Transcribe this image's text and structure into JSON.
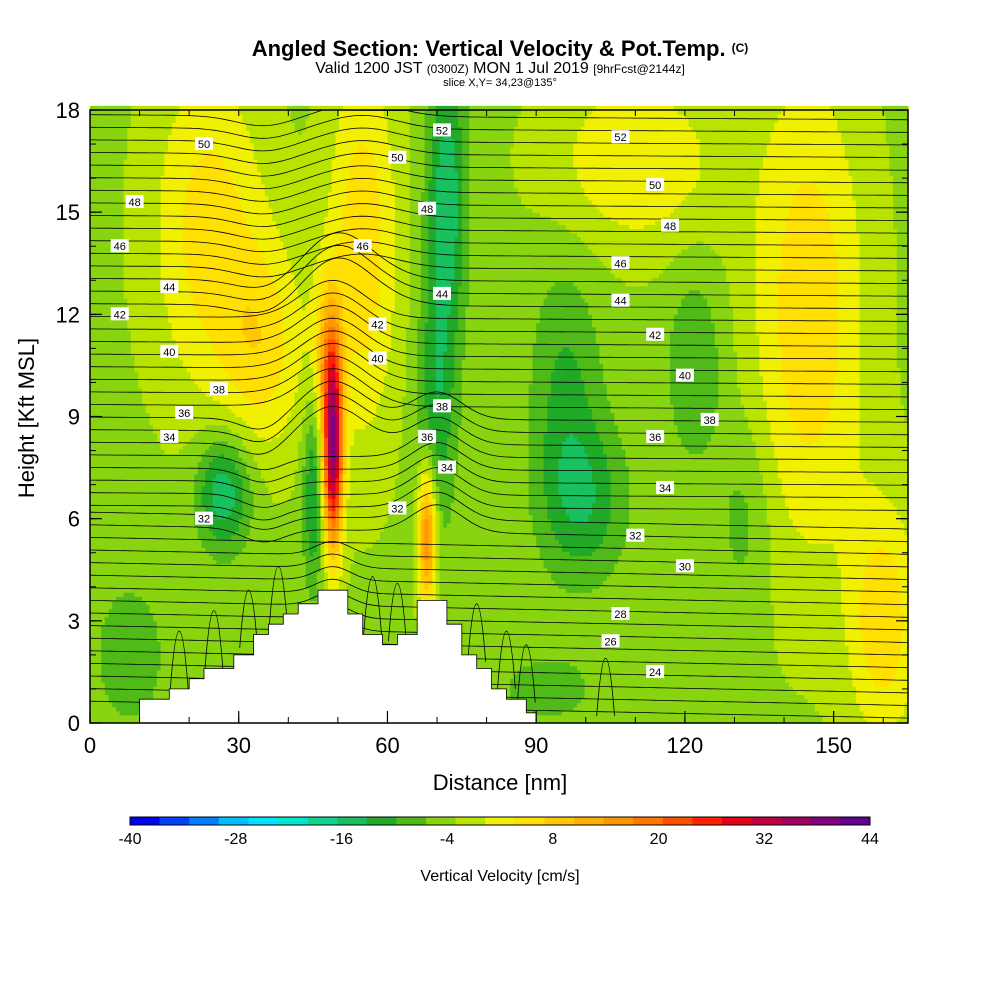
{
  "chart_data": {
    "type": "heatmap",
    "title": {
      "main": "Angled Section: Vertical Velocity & Pot.Temp.",
      "units": "(C)",
      "valid_prefix": "Valid 1200 JST",
      "valid_utc": "(0300Z)",
      "valid_date": "MON 1 Jul 2019",
      "forecast": "[9hrFcst@2144z]",
      "slice": "slice X,Y= 34,23@135°"
    },
    "xlabel": "Distance [nm]",
    "ylabel": "Height [Kft MSL]",
    "xlim": [
      0,
      165
    ],
    "ylim": [
      0,
      18
    ],
    "xticks": [
      0,
      30,
      60,
      90,
      120,
      150
    ],
    "yticks": [
      0,
      3,
      6,
      9,
      12,
      15,
      18
    ],
    "colorbar": {
      "label": "Vertical Velocity [cm/s]",
      "range": [
        -40,
        44
      ],
      "step": 4,
      "tick_labels": [
        "-40",
        "-28",
        "-16",
        "-4",
        "8",
        "20",
        "32",
        "44"
      ],
      "colors": [
        "#0000ee",
        "#0040ff",
        "#007fff",
        "#00bfff",
        "#00e0ff",
        "#00e6cc",
        "#10d690",
        "#18c060",
        "#20aa28",
        "#50bb18",
        "#88d410",
        "#b8e400",
        "#f0f000",
        "#ffe000",
        "#ffc800",
        "#ffb000",
        "#ff9800",
        "#ff7800",
        "#ff5000",
        "#ff2000",
        "#e00018",
        "#c00040",
        "#a00060",
        "#800080",
        "#600090"
      ]
    },
    "vertical_velocity_features": [
      {
        "x": 49,
        "y": 8.0,
        "sx": 1.4,
        "sy": 2.0,
        "value": 46
      },
      {
        "x": 48,
        "y": 10.8,
        "sx": 2.0,
        "sy": 1.6,
        "value": 14
      },
      {
        "x": 68,
        "y": 5.5,
        "sx": 1.3,
        "sy": 1.4,
        "value": 26
      },
      {
        "x": 55,
        "y": 14.0,
        "sx": 5.0,
        "sy": 4.0,
        "value": 12
      },
      {
        "x": 24,
        "y": 14.5,
        "sx": 8.0,
        "sy": 3.5,
        "value": 11
      },
      {
        "x": 35,
        "y": 11.0,
        "sx": 6.0,
        "sy": 2.2,
        "value": 10
      },
      {
        "x": 145,
        "y": 12.0,
        "sx": 8.0,
        "sy": 5.0,
        "value": 12
      },
      {
        "x": 110,
        "y": 16.5,
        "sx": 12.0,
        "sy": 1.8,
        "value": 9
      },
      {
        "x": 160,
        "y": 3.0,
        "sx": 5.0,
        "sy": 2.5,
        "value": 12
      },
      {
        "x": 72,
        "y": 15.5,
        "sx": 2.8,
        "sy": 2.8,
        "value": -14
      },
      {
        "x": 70,
        "y": 9.5,
        "sx": 2.8,
        "sy": 2.8,
        "value": -10
      },
      {
        "x": 27,
        "y": 6.8,
        "sx": 3.8,
        "sy": 1.2,
        "value": -15
      },
      {
        "x": 45,
        "y": 6.8,
        "sx": 1.4,
        "sy": 2.0,
        "value": -12
      },
      {
        "x": 96,
        "y": 9.5,
        "sx": 5.0,
        "sy": 2.8,
        "value": -8
      },
      {
        "x": 100,
        "y": 6.5,
        "sx": 6.0,
        "sy": 1.6,
        "value": -9
      },
      {
        "x": 122,
        "y": 10.5,
        "sx": 4.0,
        "sy": 2.0,
        "value": -7
      },
      {
        "x": 132,
        "y": 6.0,
        "sx": 4.0,
        "sy": 2.0,
        "value": -5
      },
      {
        "x": 8,
        "y": 2.0,
        "sx": 6.0,
        "sy": 1.8,
        "value": -5
      },
      {
        "x": 92,
        "y": 1.0,
        "sx": 10.0,
        "sy": 1.0,
        "value": -4
      }
    ],
    "contour_labels": [
      {
        "text": "52",
        "x": 71,
        "y": 17.4
      },
      {
        "text": "52",
        "x": 107,
        "y": 17.2
      },
      {
        "text": "50",
        "x": 23,
        "y": 17.0
      },
      {
        "text": "50",
        "x": 62,
        "y": 16.6
      },
      {
        "text": "50",
        "x": 114,
        "y": 15.8
      },
      {
        "text": "48",
        "x": 9,
        "y": 15.3
      },
      {
        "text": "48",
        "x": 68,
        "y": 15.1
      },
      {
        "text": "48",
        "x": 117,
        "y": 14.6
      },
      {
        "text": "46",
        "x": 6,
        "y": 14.0
      },
      {
        "text": "46",
        "x": 55,
        "y": 14.0
      },
      {
        "text": "46",
        "x": 107,
        "y": 13.5
      },
      {
        "text": "44",
        "x": 16,
        "y": 12.8
      },
      {
        "text": "44",
        "x": 71,
        "y": 12.6
      },
      {
        "text": "44",
        "x": 107,
        "y": 12.4
      },
      {
        "text": "42",
        "x": 6,
        "y": 12.0
      },
      {
        "text": "42",
        "x": 58,
        "y": 11.7
      },
      {
        "text": "42",
        "x": 114,
        "y": 11.4
      },
      {
        "text": "40",
        "x": 16,
        "y": 10.9
      },
      {
        "text": "40",
        "x": 58,
        "y": 10.7
      },
      {
        "text": "40",
        "x": 120,
        "y": 10.2
      },
      {
        "text": "38",
        "x": 26,
        "y": 9.8
      },
      {
        "text": "38",
        "x": 71,
        "y": 9.3
      },
      {
        "text": "38",
        "x": 125,
        "y": 8.9
      },
      {
        "text": "36",
        "x": 19,
        "y": 9.1
      },
      {
        "text": "36",
        "x": 68,
        "y": 8.4
      },
      {
        "text": "36",
        "x": 114,
        "y": 8.4
      },
      {
        "text": "34",
        "x": 16,
        "y": 8.4
      },
      {
        "text": "34",
        "x": 72,
        "y": 7.5
      },
      {
        "text": "34",
        "x": 116,
        "y": 6.9
      },
      {
        "text": "32",
        "x": 23,
        "y": 6.0
      },
      {
        "text": "32",
        "x": 62,
        "y": 6.3
      },
      {
        "text": "32",
        "x": 110,
        "y": 5.5
      },
      {
        "text": "30",
        "x": 120,
        "y": 4.6
      },
      {
        "text": "28",
        "x": 107,
        "y": 3.2
      },
      {
        "text": "26",
        "x": 105,
        "y": 2.4
      },
      {
        "text": "24",
        "x": 114,
        "y": 1.5
      }
    ],
    "terrain_steps": [
      [
        0,
        0
      ],
      [
        10,
        0
      ],
      [
        10,
        0.7
      ],
      [
        16,
        0.7
      ],
      [
        16,
        1.0
      ],
      [
        20,
        1.0
      ],
      [
        20,
        1.3
      ],
      [
        23,
        1.3
      ],
      [
        23,
        1.6
      ],
      [
        29,
        1.6
      ],
      [
        29,
        2.0
      ],
      [
        33,
        2.0
      ],
      [
        33,
        2.6
      ],
      [
        36,
        2.6
      ],
      [
        36,
        2.9
      ],
      [
        39,
        2.9
      ],
      [
        39,
        3.2
      ],
      [
        42,
        3.2
      ],
      [
        42,
        3.5
      ],
      [
        46,
        3.5
      ],
      [
        46,
        3.9
      ],
      [
        52,
        3.9
      ],
      [
        52,
        3.2
      ],
      [
        55,
        3.2
      ],
      [
        55,
        2.6
      ],
      [
        59,
        2.6
      ],
      [
        59,
        2.3
      ],
      [
        62,
        2.3
      ],
      [
        62,
        2.6
      ],
      [
        66,
        2.6
      ],
      [
        66,
        3.6
      ],
      [
        72,
        3.6
      ],
      [
        72,
        2.9
      ],
      [
        75,
        2.9
      ],
      [
        75,
        2.0
      ],
      [
        78,
        2.0
      ],
      [
        78,
        1.6
      ],
      [
        81,
        1.6
      ],
      [
        81,
        1.0
      ],
      [
        84,
        1.0
      ],
      [
        84,
        0.7
      ],
      [
        88,
        0.7
      ],
      [
        88,
        0.3
      ],
      [
        90,
        0.3
      ],
      [
        90,
        0
      ],
      [
        165,
        0
      ]
    ]
  }
}
